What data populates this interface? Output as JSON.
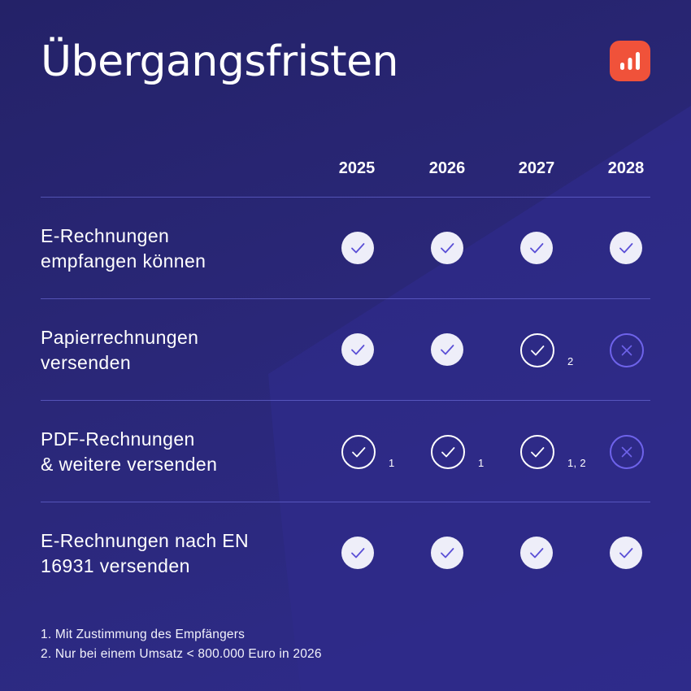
{
  "title": "Übergangsfristen",
  "logo_icon": "bar-chart-icon",
  "colors": {
    "background": "#2a2778",
    "logo": "#f0523a",
    "check_fill": "#eeeef9",
    "check_mark": "#5a4fd6",
    "cross": "#6e63ea"
  },
  "years": [
    "2025",
    "2026",
    "2027",
    "2028"
  ],
  "rows": [
    {
      "label_lines": [
        "E-Rechnungen",
        "empfangen können"
      ],
      "cells": [
        {
          "status": "check",
          "note": ""
        },
        {
          "status": "check",
          "note": ""
        },
        {
          "status": "check",
          "note": ""
        },
        {
          "status": "check",
          "note": ""
        }
      ]
    },
    {
      "label_lines": [
        "Papierrechnungen",
        "versenden"
      ],
      "cells": [
        {
          "status": "check",
          "note": ""
        },
        {
          "status": "check",
          "note": ""
        },
        {
          "status": "conditional",
          "note": "2"
        },
        {
          "status": "cross",
          "note": ""
        }
      ]
    },
    {
      "label_lines": [
        "PDF-Rechnungen",
        "& weitere versenden"
      ],
      "cells": [
        {
          "status": "conditional",
          "note": "1"
        },
        {
          "status": "conditional",
          "note": "1"
        },
        {
          "status": "conditional",
          "note": "1, 2"
        },
        {
          "status": "cross",
          "note": ""
        }
      ]
    },
    {
      "label_lines": [
        "E-Rechnungen nach EN",
        "16931 versenden"
      ],
      "cells": [
        {
          "status": "check",
          "note": ""
        },
        {
          "status": "check",
          "note": ""
        },
        {
          "status": "check",
          "note": ""
        },
        {
          "status": "check",
          "note": ""
        }
      ]
    }
  ],
  "footnotes": [
    "1. Mit Zustimmung des Empfängers",
    "2. Nur bei einem Umsatz < 800.000 Euro in 2026"
  ]
}
